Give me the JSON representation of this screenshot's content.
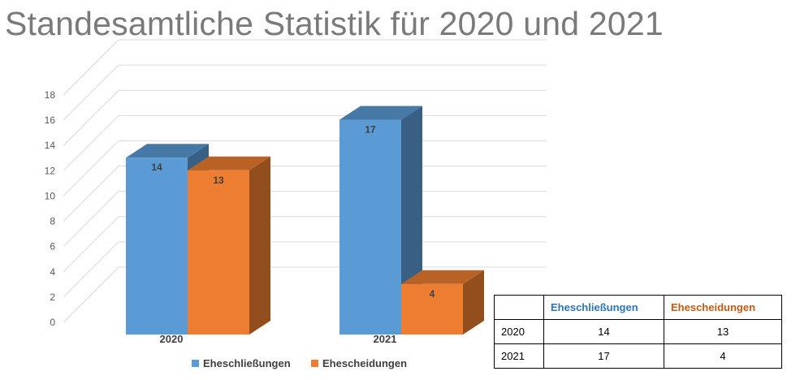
{
  "chart_data": {
    "type": "bar",
    "title": "Standesamtliche Statistik für 2020 und 2021",
    "categories": [
      "2020",
      "2021"
    ],
    "series": [
      {
        "name": "Eheschließungen",
        "values": [
          14,
          17
        ],
        "color": "#5b9bd5"
      },
      {
        "name": "Ehescheidungen",
        "values": [
          13,
          4
        ],
        "color": "#ed7d31"
      }
    ],
    "ylim": [
      0,
      18
    ],
    "yticks": [
      "0",
      "2",
      "4",
      "6",
      "8",
      "10",
      "12",
      "14",
      "16",
      "18"
    ],
    "grid": true,
    "legend_position": "bottom",
    "data_labels": true,
    "style": "3d-clustered-column"
  },
  "table": {
    "header": [
      "",
      "Eheschließungen",
      "Ehescheidungen"
    ],
    "header_colors": [
      "#000000",
      "#2e75b6",
      "#c55a11"
    ],
    "rows": [
      [
        "2020",
        "14",
        "13"
      ],
      [
        "2021",
        "17",
        "4"
      ]
    ]
  }
}
